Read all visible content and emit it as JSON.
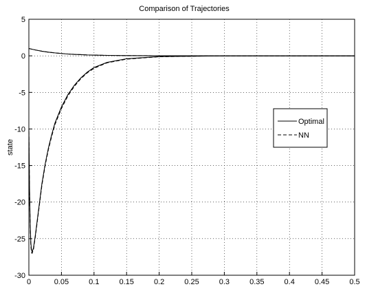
{
  "chart_data": {
    "type": "line",
    "title": "Comparison of Trajectories",
    "xlabel": "",
    "ylabel": "state",
    "xlim": [
      0,
      0.5
    ],
    "ylim": [
      -30,
      5
    ],
    "grid": true,
    "legend_position": "right",
    "xticks": [
      0,
      0.05,
      0.1,
      0.15,
      0.2,
      0.25,
      0.3,
      0.35,
      0.4,
      0.45,
      0.5
    ],
    "xtick_labels": [
      "0",
      "0.05",
      "0.1",
      "0.15",
      "0.2",
      "0.25",
      "0.3",
      "0.35",
      "0.4",
      "0.45",
      "0.5"
    ],
    "yticks": [
      5,
      0,
      -5,
      -10,
      -15,
      -20,
      -25,
      -30
    ],
    "ytick_labels": [
      "5",
      "0",
      "-5",
      "-10",
      "-15",
      "-20",
      "-25",
      "-30"
    ],
    "series": [
      {
        "name": "Optimal",
        "style": "solid",
        "color": "#000000",
        "curves": [
          {
            "x": [
              0,
              0.01,
              0.02,
              0.03,
              0.04,
              0.05,
              0.06,
              0.07,
              0.08,
              0.09,
              0.1,
              0.12,
              0.15,
              0.2,
              0.3,
              0.4,
              0.5
            ],
            "y": [
              1.0,
              0.8,
              0.63,
              0.5,
              0.4,
              0.32,
              0.25,
              0.2,
              0.16,
              0.12,
              0.1,
              0.06,
              0.03,
              0.01,
              0,
              0,
              0
            ]
          },
          {
            "x": [
              0,
              0.001,
              0.002,
              0.003,
              0.004,
              0.005,
              0.007,
              0.01,
              0.015,
              0.02,
              0.025,
              0.03,
              0.035,
              0.04,
              0.05,
              0.06,
              0.07,
              0.08,
              0.09,
              0.1,
              0.12,
              0.15,
              0.2,
              0.25,
              0.3,
              0.4,
              0.5
            ],
            "y": [
              -10,
              -18,
              -23,
              -25.5,
              -26.5,
              -26.8,
              -26.3,
              -24.5,
              -21,
              -17.5,
              -14.8,
              -12.6,
              -10.8,
              -9.2,
              -7.0,
              -5.3,
              -4.0,
              -3.0,
              -2.2,
              -1.6,
              -0.9,
              -0.4,
              -0.1,
              -0.05,
              0,
              0,
              0
            ]
          }
        ]
      },
      {
        "name": "NN",
        "style": "dashed",
        "color": "#000000",
        "curves": [
          {
            "x": [
              0,
              0.01,
              0.02,
              0.03,
              0.04,
              0.05,
              0.06,
              0.07,
              0.08,
              0.09,
              0.1,
              0.12,
              0.15,
              0.2,
              0.3,
              0.4,
              0.5
            ],
            "y": [
              1.0,
              0.8,
              0.63,
              0.5,
              0.4,
              0.32,
              0.25,
              0.2,
              0.16,
              0.12,
              0.1,
              0.06,
              0.03,
              0.01,
              0,
              0,
              0
            ]
          },
          {
            "x": [
              0,
              0.001,
              0.002,
              0.003,
              0.004,
              0.005,
              0.007,
              0.01,
              0.015,
              0.02,
              0.025,
              0.03,
              0.035,
              0.04,
              0.05,
              0.06,
              0.07,
              0.08,
              0.09,
              0.1,
              0.12,
              0.15,
              0.2,
              0.25,
              0.3,
              0.4,
              0.5
            ],
            "y": [
              -10.3,
              -18.5,
              -23.4,
              -25.9,
              -26.9,
              -27.0,
              -26.5,
              -24.7,
              -21.2,
              -17.7,
              -15.0,
              -12.8,
              -11.0,
              -9.4,
              -7.2,
              -5.45,
              -4.15,
              -3.1,
              -2.3,
              -1.7,
              -0.95,
              -0.45,
              -0.12,
              -0.05,
              0,
              0,
              0
            ]
          }
        ]
      }
    ]
  }
}
